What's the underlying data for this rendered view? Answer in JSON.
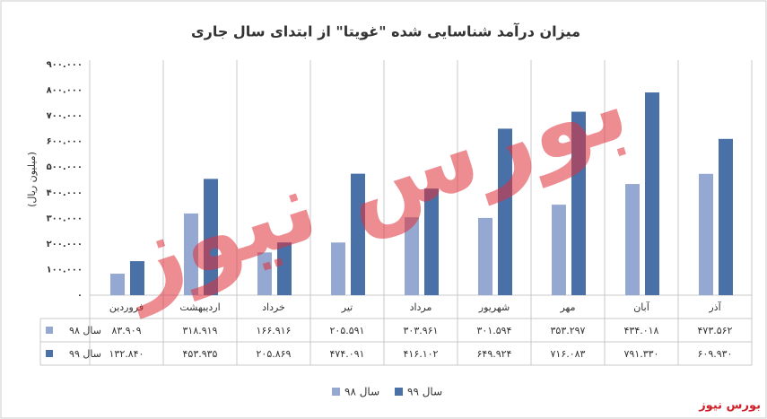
{
  "chart_data": {
    "type": "bar",
    "title": "میزان درآمد شناسایی شده \"غویتا\" از ابتدای سال جاری",
    "y_label": "(میلیون ریال)",
    "watermark": "بورس نیوز",
    "source": "بورس نیوز",
    "categories": [
      "فروردین",
      "اردیبهشت",
      "خرداد",
      "تیر",
      "مرداد",
      "شهریور",
      "مهر",
      "آبان",
      "آذر"
    ],
    "series": [
      {
        "name": "سال ۹۸",
        "color": "#95a8d2",
        "values": [
          83909,
          318919,
          166916,
          205591,
          303961,
          301594,
          353297,
          434018,
          473562
        ],
        "value_labels": [
          "۸۳.۹۰۹",
          "۳۱۸.۹۱۹",
          "۱۶۶.۹۱۶",
          "۲۰۵.۵۹۱",
          "۳۰۳.۹۶۱",
          "۳۰۱.۵۹۴",
          "۳۵۳.۲۹۷",
          "۴۳۴.۰۱۸",
          "۴۷۳.۵۶۲"
        ]
      },
      {
        "name": "سال ۹۹",
        "color": "#4a70a8",
        "values": [
          132840,
          453935,
          205869,
          474091,
          416102,
          649924,
          716083,
          791330,
          609930
        ],
        "value_labels": [
          "۱۳۲.۸۴۰",
          "۴۵۳.۹۳۵",
          "۲۰۵.۸۶۹",
          "۴۷۴.۰۹۱",
          "۴۱۶.۱۰۲",
          "۶۴۹.۹۲۴",
          "۷۱۶.۰۸۳",
          "۷۹۱.۳۳۰",
          "۶۰۹.۹۳۰"
        ]
      }
    ],
    "ylim": [
      0,
      900000
    ],
    "yticks": [
      {
        "value": 0,
        "label": "۰"
      },
      {
        "value": 100000,
        "label": "۱۰۰.۰۰۰"
      },
      {
        "value": 200000,
        "label": "۲۰۰.۰۰۰"
      },
      {
        "value": 300000,
        "label": "۳۰۰.۰۰۰"
      },
      {
        "value": 400000,
        "label": "۴۰۰.۰۰۰"
      },
      {
        "value": 500000,
        "label": "۵۰۰.۰۰۰"
      },
      {
        "value": 600000,
        "label": "۶۰۰.۰۰۰"
      },
      {
        "value": 700000,
        "label": "۷۰۰.۰۰۰"
      },
      {
        "value": 800000,
        "label": "۸۰۰.۰۰۰"
      },
      {
        "value": 900000,
        "label": "۹۰۰.۰۰۰"
      }
    ],
    "grid": false
  }
}
